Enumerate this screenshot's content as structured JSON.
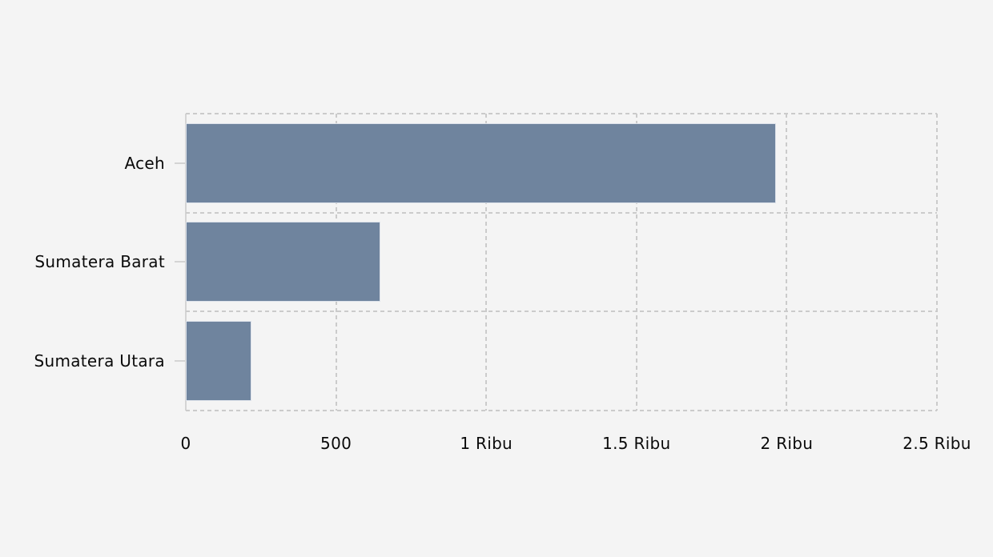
{
  "page": {
    "background_color": "#f4f4f4"
  },
  "chart_data": {
    "type": "bar",
    "orientation": "horizontal",
    "title": "",
    "xlabel": "",
    "ylabel": "",
    "categories": [
      "Aceh",
      "Sumatera Barat",
      "Sumatera Utara"
    ],
    "values": [
      1965,
      648,
      219
    ],
    "xlim": [
      0,
      2500
    ],
    "x_ticks": [
      {
        "value": 0,
        "label": "0"
      },
      {
        "value": 500,
        "label": "500"
      },
      {
        "value": 1000,
        "label": "1 Ribu"
      },
      {
        "value": 1500,
        "label": "1.5 Ribu"
      },
      {
        "value": 2000,
        "label": "2 Ribu"
      },
      {
        "value": 2500,
        "label": "2.5 Ribu"
      }
    ],
    "grid": "dashed",
    "legend": "none",
    "colors": {
      "bar_fill": "#6f849e",
      "bar_outline": "#dde2ea",
      "gridline": "#cbcbcb",
      "axis_line": "#d4d4d4",
      "text": "#0a0a0a"
    }
  }
}
